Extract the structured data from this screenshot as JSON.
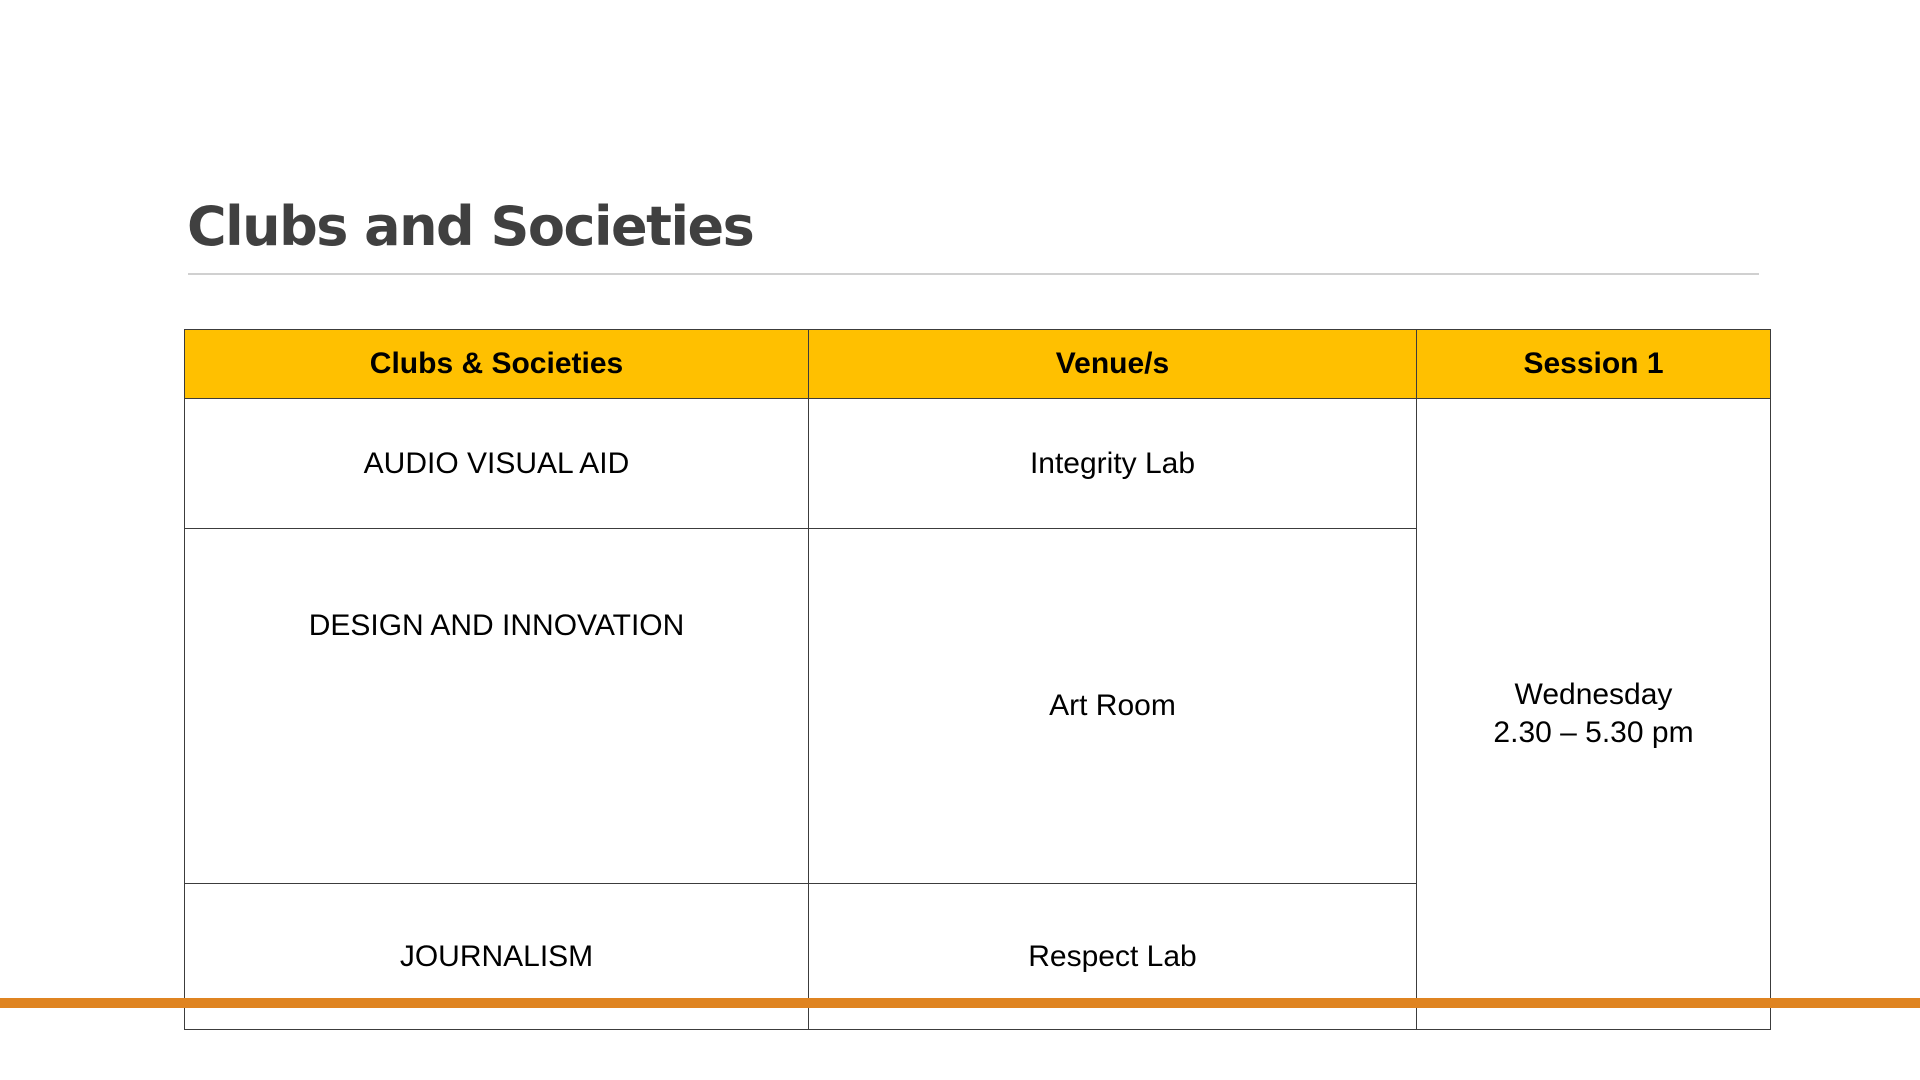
{
  "slide": {
    "title": "Clubs and Societies"
  },
  "table": {
    "headers": [
      "Clubs & Societies",
      "Venue/s",
      "Session 1"
    ],
    "rows": [
      {
        "club": "AUDIO VISUAL AID",
        "venue": "Integrity Lab"
      },
      {
        "club": "DESIGN AND INNOVATION",
        "venue": "Art Room"
      },
      {
        "club": "JOURNALISM",
        "venue": "Respect Lab"
      }
    ],
    "session": {
      "day": "Wednesday",
      "time": "2.30 – 5.30 pm"
    }
  },
  "colors": {
    "header_fill": "#ffc000",
    "footer_bar": "#df8421",
    "title_text": "#404040"
  }
}
